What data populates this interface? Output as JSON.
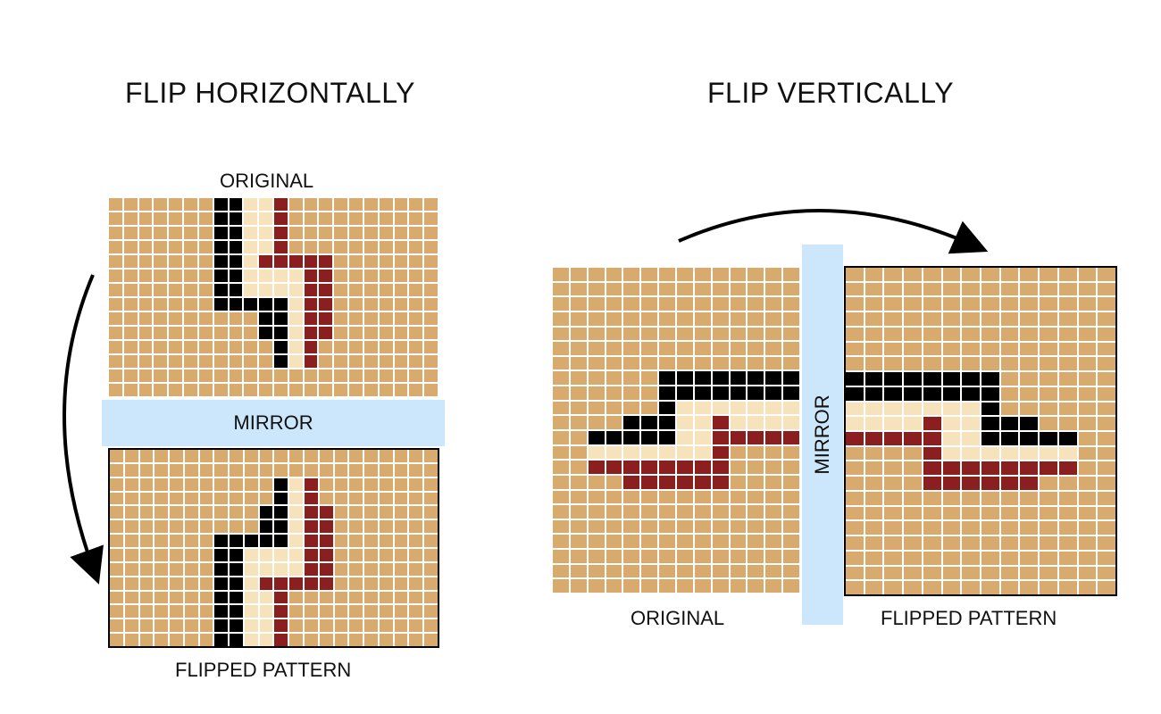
{
  "titles": {
    "left": "FLIP HORIZONTALLY",
    "right": "FLIP VERTICALLY"
  },
  "labels": {
    "left_original": "ORIGINAL",
    "left_mirror": "MIRROR",
    "left_flipped": "FLIPPED PATTERN",
    "right_original": "ORIGINAL",
    "right_mirror": "MIRROR",
    "right_flipped": "FLIPPED PATTERN"
  },
  "colors": {
    "background": "#d8aa6e",
    "black": "#000000",
    "red": "#8b1f1f",
    "cream": "#f6e2bb",
    "mirror": "#cce7fb"
  },
  "pattern": {
    "columns": 22,
    "rows": 14,
    "cells_by_row": [
      [
        [
          "black",
          7
        ],
        [
          "black",
          8
        ],
        [
          "cream",
          9
        ],
        [
          "cream",
          10
        ],
        [
          "red",
          11
        ]
      ],
      [
        [
          "black",
          7
        ],
        [
          "black",
          8
        ],
        [
          "cream",
          9
        ],
        [
          "cream",
          10
        ],
        [
          "red",
          11
        ]
      ],
      [
        [
          "black",
          7
        ],
        [
          "black",
          8
        ],
        [
          "cream",
          9
        ],
        [
          "cream",
          10
        ],
        [
          "red",
          11
        ]
      ],
      [
        [
          "black",
          7
        ],
        [
          "black",
          8
        ],
        [
          "cream",
          9
        ],
        [
          "cream",
          10
        ],
        [
          "red",
          11
        ]
      ],
      [
        [
          "black",
          7
        ],
        [
          "black",
          8
        ],
        [
          "cream",
          9
        ],
        [
          "red",
          10
        ],
        [
          "red",
          11
        ],
        [
          "red",
          12
        ],
        [
          "red",
          13
        ],
        [
          "red",
          14
        ]
      ],
      [
        [
          "black",
          7
        ],
        [
          "black",
          8
        ],
        [
          "cream",
          9
        ],
        [
          "cream",
          10
        ],
        [
          "cream",
          11
        ],
        [
          "cream",
          12
        ],
        [
          "red",
          13
        ],
        [
          "red",
          14
        ]
      ],
      [
        [
          "black",
          7
        ],
        [
          "black",
          8
        ],
        [
          "cream",
          9
        ],
        [
          "cream",
          10
        ],
        [
          "cream",
          11
        ],
        [
          "cream",
          12
        ],
        [
          "red",
          13
        ],
        [
          "red",
          14
        ]
      ],
      [
        [
          "black",
          7
        ],
        [
          "black",
          8
        ],
        [
          "black",
          9
        ],
        [
          "black",
          10
        ],
        [
          "black",
          11
        ],
        [
          "cream",
          12
        ],
        [
          "red",
          13
        ],
        [
          "red",
          14
        ]
      ],
      [
        [
          "black",
          10
        ],
        [
          "black",
          11
        ],
        [
          "cream",
          12
        ],
        [
          "red",
          13
        ],
        [
          "red",
          14
        ]
      ],
      [
        [
          "black",
          10
        ],
        [
          "black",
          11
        ],
        [
          "cream",
          12
        ],
        [
          "red",
          13
        ],
        [
          "red",
          14
        ]
      ],
      [
        [
          "black",
          11
        ],
        [
          "cream",
          12
        ],
        [
          "red",
          13
        ]
      ],
      [
        [
          "black",
          11
        ],
        [
          "cream",
          12
        ],
        [
          "red",
          13
        ]
      ]
    ]
  }
}
